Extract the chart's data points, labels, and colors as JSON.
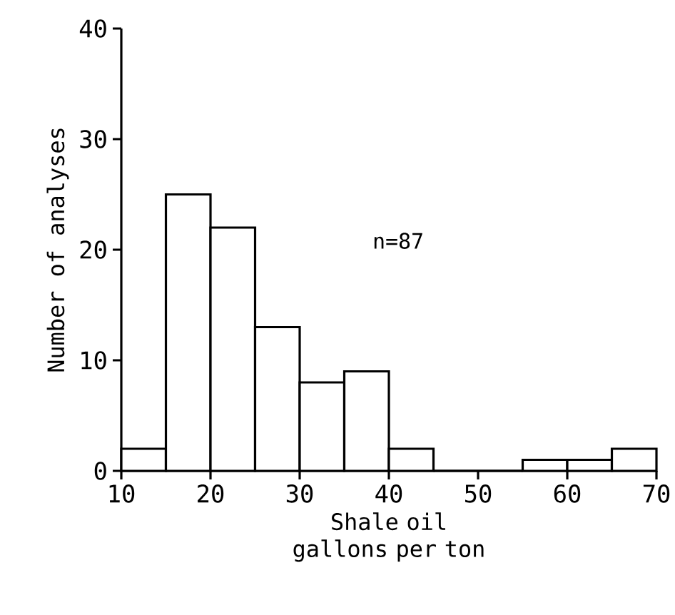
{
  "chart_data": {
    "type": "histogram",
    "xlabel": "Shale oil\ngallons per ton",
    "ylabel": "Number of analyses",
    "bins": [
      10,
      15,
      20,
      25,
      30,
      35,
      40,
      45,
      50,
      55,
      60,
      65,
      70
    ],
    "values": [
      2,
      25,
      22,
      13,
      8,
      9,
      2,
      0,
      0,
      1,
      1,
      2
    ],
    "color": "#000000",
    "xlim": [
      10,
      70
    ],
    "xticks": [
      10,
      20,
      30,
      40,
      50,
      60,
      70
    ],
    "ylim": [
      0,
      40
    ],
    "yticks": [
      0,
      10,
      20,
      30,
      40
    ],
    "annotations": [
      "n=87"
    ]
  }
}
